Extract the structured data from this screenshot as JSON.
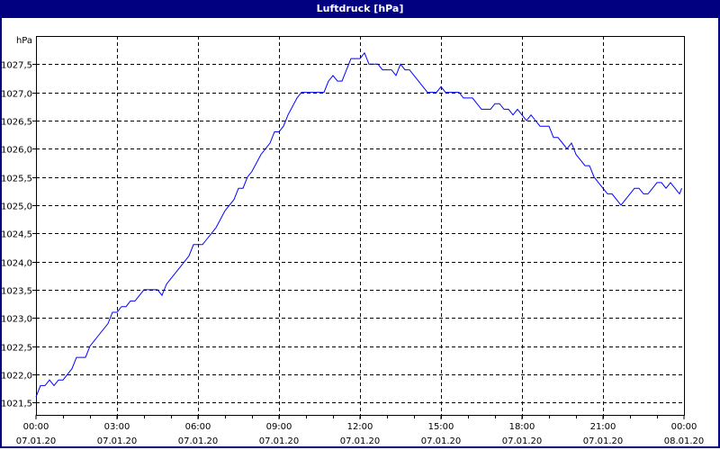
{
  "window": {
    "title": "Luftdruck [hPa]",
    "title_bg": "#000080"
  },
  "chart_data": {
    "type": "line",
    "title": "Luftdruck [hPa]",
    "ylabel": "hPa",
    "xlabel": "",
    "ylim": [
      1021.28,
      1028.0
    ],
    "xlim": [
      "07.01.20 00:00",
      "08.01.20 00:00"
    ],
    "grid": true,
    "line_color": "#0000ff",
    "y_ticks": [
      "1021,5",
      "1022,0",
      "1022,5",
      "1023,0",
      "1023,5",
      "1024,0",
      "1024,5",
      "1025,0",
      "1025,5",
      "1026,0",
      "1026,5",
      "1027,0",
      "1027,5"
    ],
    "y_tick_values": [
      1021.5,
      1022.0,
      1022.5,
      1023.0,
      1023.5,
      1024.0,
      1024.5,
      1025.0,
      1025.5,
      1026.0,
      1026.5,
      1027.0,
      1027.5
    ],
    "x_ticks": [
      {
        "time": "00:00",
        "date": "07.01.20"
      },
      {
        "time": "03:00",
        "date": "07.01.20"
      },
      {
        "time": "06:00",
        "date": "07.01.20"
      },
      {
        "time": "09:00",
        "date": "07.01.20"
      },
      {
        "time": "12:00",
        "date": "07.01.20"
      },
      {
        "time": "15:00",
        "date": "07.01.20"
      },
      {
        "time": "18:00",
        "date": "07.01.20"
      },
      {
        "time": "21:00",
        "date": "07.01.20"
      },
      {
        "time": "00:00",
        "date": "08.01.20"
      }
    ],
    "series": [
      {
        "x": [
          "00:00",
          "00:10",
          "00:20",
          "00:30",
          "00:40",
          "00:50",
          "01:00",
          "01:10",
          "01:20",
          "01:30",
          "01:50",
          "02:00",
          "02:20",
          "02:40",
          "02:50",
          "03:00",
          "03:10",
          "03:20",
          "03:30",
          "03:40",
          "03:50",
          "04:00",
          "04:30",
          "04:40",
          "04:50",
          "05:00",
          "05:20",
          "05:40",
          "05:50",
          "06:00",
          "06:10",
          "06:20",
          "06:30",
          "06:40",
          "07:00",
          "07:20",
          "07:30",
          "07:40",
          "07:50",
          "08:00",
          "08:20",
          "08:30",
          "08:40",
          "08:50",
          "09:00",
          "09:10",
          "09:20",
          "09:40",
          "09:50",
          "10:00",
          "10:20",
          "10:40",
          "10:50",
          "11:00",
          "11:10",
          "11:20",
          "11:30",
          "11:40",
          "12:00",
          "12:10",
          "12:20",
          "12:30",
          "12:40",
          "12:50",
          "13:10",
          "13:20",
          "13:30",
          "13:40",
          "13:50",
          "14:00",
          "14:10",
          "14:20",
          "14:30",
          "14:50",
          "15:00",
          "15:10",
          "15:30",
          "15:40",
          "15:50",
          "16:10",
          "16:20",
          "16:30",
          "16:50",
          "17:00",
          "17:10",
          "17:20",
          "17:30",
          "17:40",
          "17:50",
          "18:00",
          "18:10",
          "18:20",
          "18:30",
          "18:40",
          "19:00",
          "19:10",
          "19:20",
          "19:30",
          "19:40",
          "19:50",
          "20:00",
          "20:10",
          "20:20",
          "20:30",
          "20:40",
          "20:50",
          "21:00",
          "21:10",
          "21:20",
          "21:30",
          "21:40",
          "21:50",
          "22:00",
          "22:10",
          "22:20",
          "22:30",
          "22:40",
          "22:50",
          "23:00",
          "23:10",
          "23:20",
          "23:30",
          "23:40",
          "23:50",
          "23:55"
        ],
        "y": [
          1021.6,
          1021.8,
          1021.8,
          1021.9,
          1021.8,
          1021.9,
          1021.9,
          1022.0,
          1022.1,
          1022.3,
          1022.3,
          1022.5,
          1022.7,
          1022.9,
          1023.1,
          1023.1,
          1023.2,
          1023.2,
          1023.3,
          1023.3,
          1023.4,
          1023.5,
          1023.5,
          1023.4,
          1023.6,
          1023.7,
          1023.9,
          1024.1,
          1024.3,
          1024.3,
          1024.3,
          1024.4,
          1024.5,
          1024.6,
          1024.9,
          1025.1,
          1025.3,
          1025.3,
          1025.5,
          1025.6,
          1025.9,
          1026.0,
          1026.1,
          1026.3,
          1026.3,
          1026.4,
          1026.6,
          1026.9,
          1027.0,
          1027.0,
          1027.0,
          1027.0,
          1027.2,
          1027.3,
          1027.2,
          1027.2,
          1027.4,
          1027.6,
          1027.6,
          1027.7,
          1027.5,
          1027.5,
          1027.5,
          1027.4,
          1027.4,
          1027.3,
          1027.5,
          1027.4,
          1027.4,
          1027.3,
          1027.2,
          1027.1,
          1027.0,
          1027.0,
          1027.1,
          1027.0,
          1027.0,
          1027.0,
          1026.9,
          1026.9,
          1026.8,
          1026.7,
          1026.7,
          1026.8,
          1026.8,
          1026.7,
          1026.7,
          1026.6,
          1026.7,
          1026.6,
          1026.5,
          1026.6,
          1026.5,
          1026.4,
          1026.4,
          1026.2,
          1026.2,
          1026.1,
          1026.0,
          1026.1,
          1025.9,
          1025.8,
          1025.7,
          1025.7,
          1025.5,
          1025.4,
          1025.3,
          1025.2,
          1025.2,
          1025.1,
          1025.0,
          1025.1,
          1025.2,
          1025.3,
          1025.3,
          1025.2,
          1025.2,
          1025.3,
          1025.4,
          1025.4,
          1025.3,
          1025.4,
          1025.3,
          1025.2,
          1025.3
        ]
      }
    ]
  }
}
